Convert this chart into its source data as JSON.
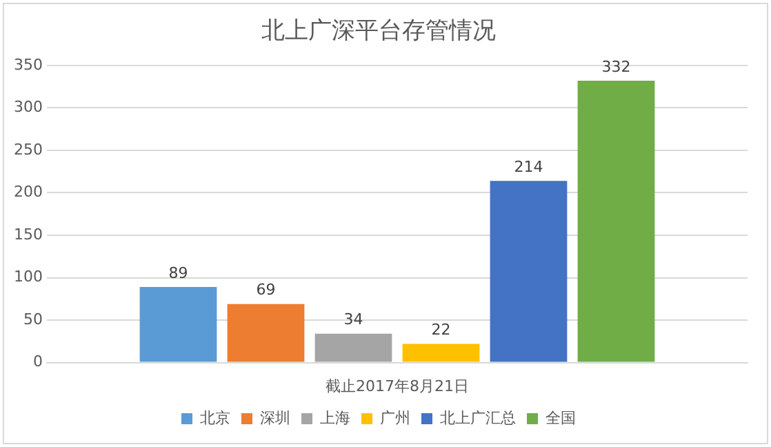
{
  "chart_data": {
    "type": "bar",
    "title": "北上广深平台存管情况",
    "categories": [
      "截止2017年8月21日"
    ],
    "series": [
      {
        "name": "北京",
        "color": "#5b9bd5",
        "values": [
          89
        ]
      },
      {
        "name": "深圳",
        "color": "#ed7d31",
        "values": [
          69
        ]
      },
      {
        "name": "上海",
        "color": "#a5a5a5",
        "values": [
          34
        ]
      },
      {
        "name": "广州",
        "color": "#ffc000",
        "values": [
          22
        ]
      },
      {
        "name": "北上广汇总",
        "color": "#4472c4",
        "values": [
          214
        ]
      },
      {
        "name": "全国",
        "color": "#70ad47",
        "values": [
          332
        ]
      }
    ],
    "ylim": [
      0,
      350
    ],
    "yticks": [
      0,
      50,
      100,
      150,
      200,
      250,
      300,
      350
    ],
    "grid": "y",
    "legend": "bottom",
    "data_labels": true
  }
}
